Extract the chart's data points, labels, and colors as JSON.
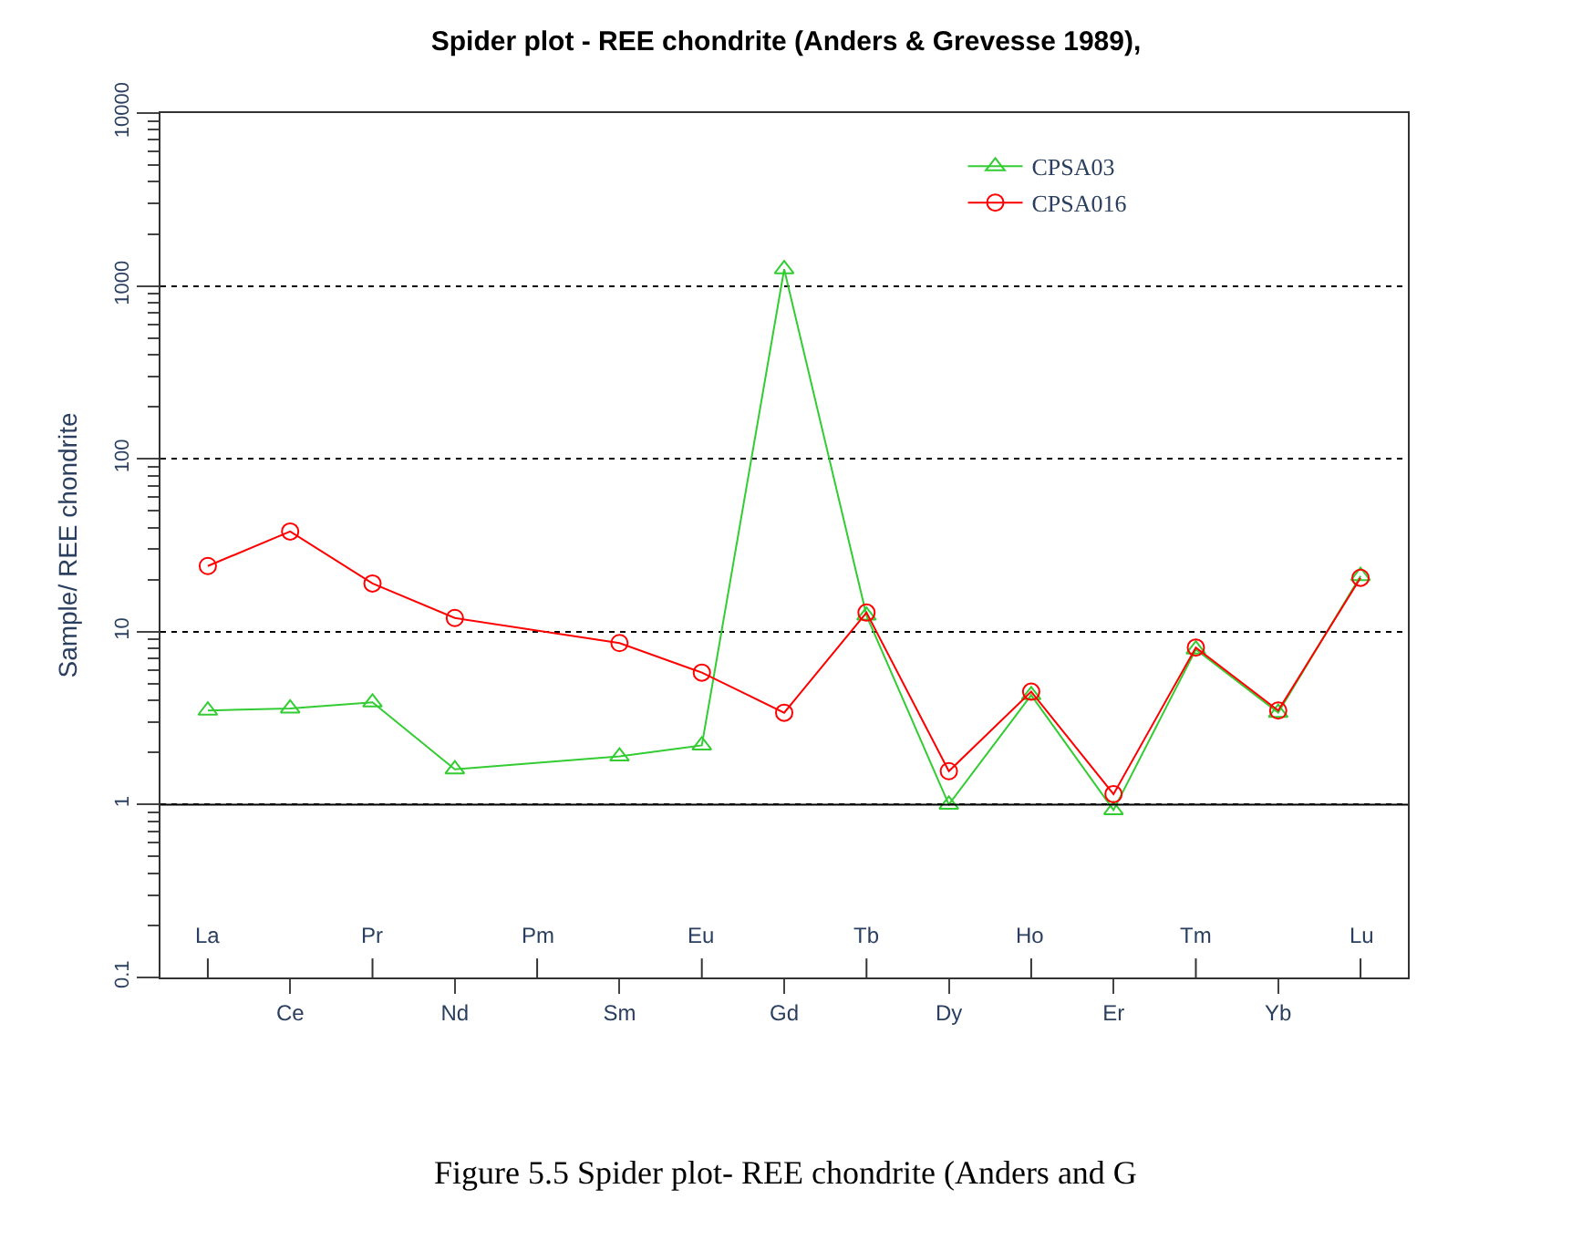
{
  "chart_data": {
    "type": "line",
    "title": "Spider plot - REE chondrite (Anders & Grevesse 1989),",
    "ylabel": "Sample/ REE chondrite",
    "categories": [
      "La",
      "Ce",
      "Pr",
      "Nd",
      "Pm",
      "Sm",
      "Eu",
      "Gd",
      "Tb",
      "Dy",
      "Ho",
      "Er",
      "Tm",
      "Yb",
      "Lu"
    ],
    "series": [
      {
        "name": "CPSA03",
        "color": "#33cc33",
        "marker": "triangle",
        "values": [
          3.5,
          3.6,
          3.9,
          1.6,
          null,
          1.9,
          2.2,
          1250,
          12.4,
          1.0,
          4.3,
          0.93,
          7.9,
          3.4,
          21
        ]
      },
      {
        "name": "CPSA016",
        "color": "#ff0000",
        "marker": "circle",
        "values": [
          24,
          38,
          19,
          12,
          null,
          8.6,
          5.8,
          3.4,
          12.9,
          1.56,
          4.5,
          1.15,
          8.1,
          3.5,
          20.5
        ]
      }
    ],
    "log": true,
    "ylim": [
      0.1,
      10000
    ],
    "yticks": [
      0.1,
      1,
      10,
      100,
      1000,
      10000
    ],
    "grid": "y",
    "ref_lines": [
      {
        "axis": "y",
        "value": 1,
        "color": "#000000",
        "line_style": "solid"
      }
    ],
    "line_style": "solid",
    "legend": "top right",
    "annotations": [
      "Figure 5.5 Spider plot- REE chondrite (Anders and G"
    ]
  }
}
